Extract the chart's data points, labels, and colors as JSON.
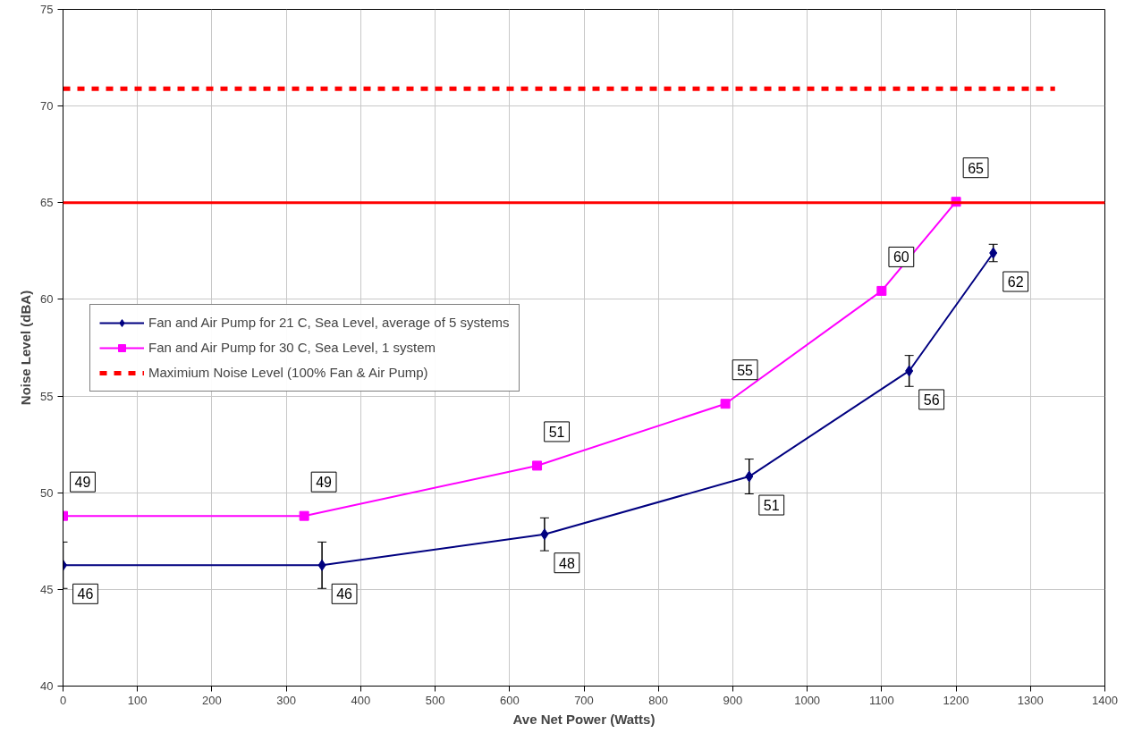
{
  "chart_data": {
    "type": "line",
    "xlabel": "Ave Net Power (Watts)",
    "ylabel": "Noise Level (dBA)",
    "xlim": [
      0,
      1400
    ],
    "xticks": [
      0,
      100,
      200,
      300,
      400,
      500,
      600,
      700,
      800,
      900,
      1000,
      1100,
      1200,
      1300,
      1400
    ],
    "ylim": [
      40,
      75
    ],
    "yticks": [
      40,
      45,
      50,
      55,
      60,
      65,
      70,
      75
    ],
    "grid": true,
    "legend": "left",
    "series": [
      {
        "name": "Fan and Air Pump for 21 C, Sea Level, average of 5 systems",
        "color": "#000080",
        "marker": "diamond",
        "line_style": "solid",
        "x": [
          0,
          348,
          647,
          922,
          1137,
          1250
        ],
        "values": [
          46.25,
          46.25,
          47.85,
          50.84,
          56.3,
          62.4
        ],
        "errors": [
          1.2,
          1.2,
          0.85,
          0.9,
          0.8,
          0.45
        ],
        "value_labels": [
          "46",
          "46",
          "48",
          "51",
          "56",
          "62"
        ]
      },
      {
        "name": "Fan and Air Pump for 30 C, Sea Level, 1 system",
        "color": "#ff00ff",
        "marker": "square",
        "line_style": "solid",
        "x": [
          0,
          324,
          637,
          890,
          1100,
          1200
        ],
        "values": [
          48.8,
          48.8,
          51.4,
          54.6,
          60.44,
          65.05
        ],
        "value_labels": [
          "49",
          "49",
          "51",
          "55",
          "60",
          "65"
        ]
      },
      {
        "name": "Maximium Noise Level (100% Fan & Air Pump)",
        "color": "#ff0000",
        "marker": "none",
        "line_style": "dashed",
        "x": [
          0,
          1333
        ],
        "values": [
          70.9,
          70.9
        ]
      }
    ],
    "ref_lines": [
      {
        "axis": "y",
        "value": 65,
        "color": "#ff0000",
        "line_style": "solid"
      }
    ]
  }
}
